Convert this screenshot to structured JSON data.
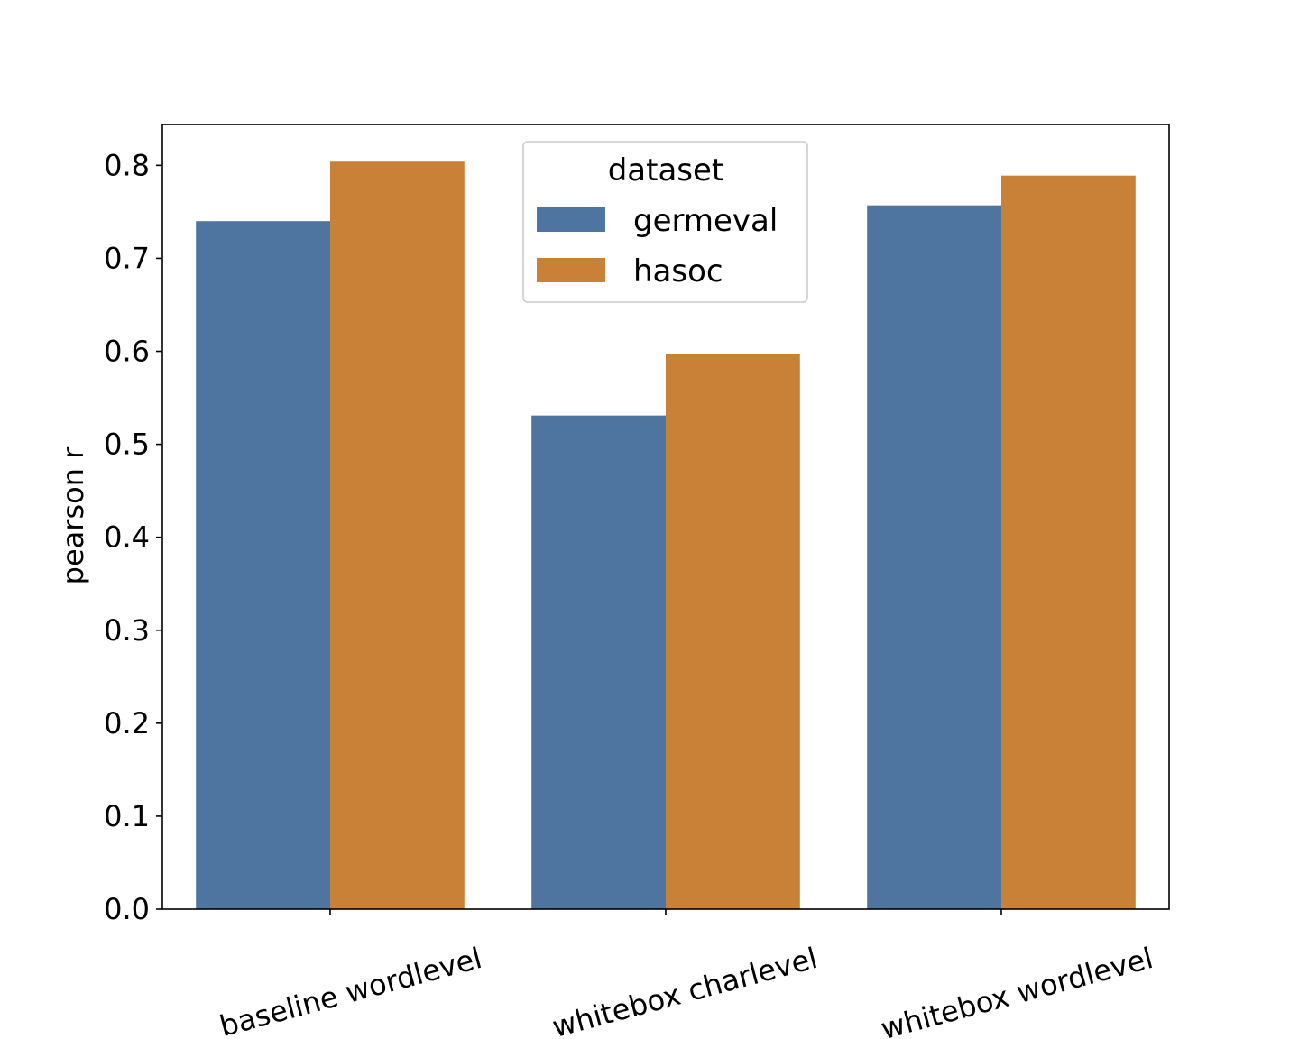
{
  "chart_data": {
    "type": "bar",
    "categories": [
      "baseline wordlevel",
      "whitebox charlevel",
      "whitebox wordlevel"
    ],
    "series": [
      {
        "name": "germeval",
        "values": [
          0.74,
          0.531,
          0.757
        ],
        "color": "#4e74a0"
      },
      {
        "name": "hasoc",
        "values": [
          0.804,
          0.597,
          0.789
        ],
        "color": "#c98137"
      }
    ],
    "xlabel": "",
    "ylabel": "pearson r",
    "ylim": [
      0,
      0.844
    ],
    "yticks": [
      "0.0",
      "0.1",
      "0.2",
      "0.3",
      "0.4",
      "0.5",
      "0.6",
      "0.7",
      "0.8"
    ],
    "legend": {
      "title": "dataset",
      "position": "top-center"
    },
    "grid": false
  }
}
